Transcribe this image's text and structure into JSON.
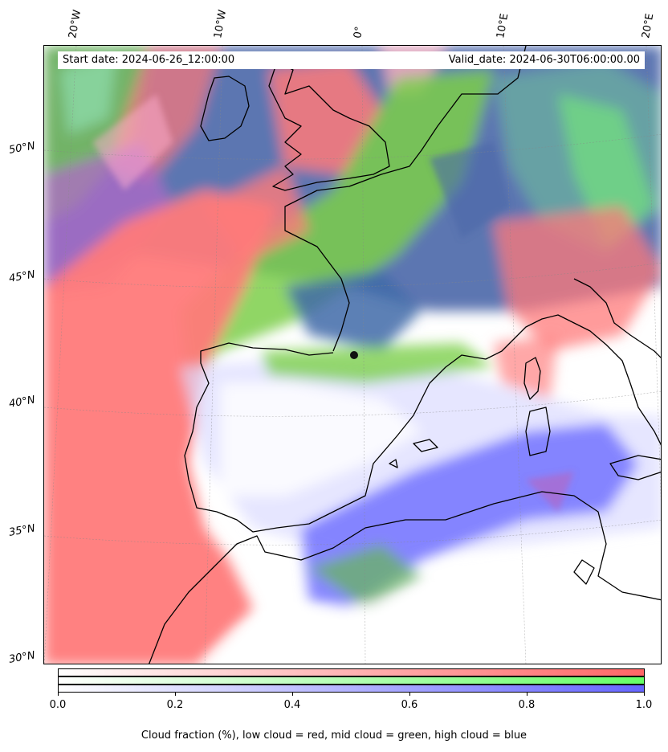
{
  "header": {
    "start_date": "Start date: 2024-06-26_12:00:00",
    "valid_date": "Valid_date: 2024-06-30T06:00:00.00"
  },
  "lon_labels": [
    "20°W",
    "10°W",
    "0°",
    "10°E",
    "20°E"
  ],
  "lat_labels": [
    "50°N",
    "45°N",
    "40°N",
    "35°N",
    "30°N"
  ],
  "colorbar": {
    "ticks": [
      "0.0",
      "0.2",
      "0.4",
      "0.6",
      "0.8",
      "1.0"
    ],
    "caption": "Cloud fraction (%), low cloud = red, mid cloud = green, high cloud = blue",
    "colors": {
      "low": "#ff6666",
      "mid": "#66ff66",
      "high": "#6666ff"
    }
  },
  "map": {
    "colors": {
      "low_cloud": "#ff7a7a",
      "mid_cloud": "#7ccf4a",
      "high_cloud": "#7a7aff",
      "high_mid_mix": "#3f6aa8",
      "purple_mix": "#b06ac8",
      "coastline": "#000000"
    }
  }
}
